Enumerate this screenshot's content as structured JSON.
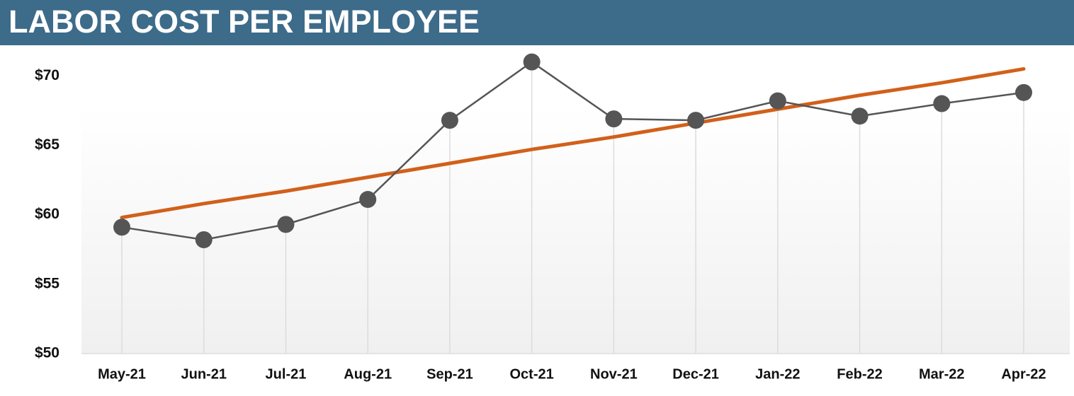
{
  "chart_data": {
    "type": "line",
    "title": "LABOR COST PER EMPLOYEE",
    "categories": [
      "May-21",
      "Jun-21",
      "Jul-21",
      "Aug-21",
      "Sep-21",
      "Oct-21",
      "Nov-21",
      "Dec-21",
      "Jan-22",
      "Feb-22",
      "Mar-22",
      "Apr-22"
    ],
    "series": [
      {
        "color": "#555555",
        "values": [
          59.1,
          58.2,
          59.3,
          61.1,
          66.8,
          71.0,
          66.9,
          66.8,
          68.2,
          67.1,
          68.0,
          68.8
        ]
      },
      {
        "color": "#d2601a",
        "values": [
          59.8,
          60.8,
          61.7,
          62.7,
          63.7,
          64.7,
          65.6,
          66.6,
          67.6,
          68.6,
          69.5,
          70.5
        ]
      }
    ],
    "ylim": [
      50,
      72
    ],
    "yticks": [
      {
        "value": 50,
        "label": "$50"
      },
      {
        "value": 55,
        "label": "$55"
      },
      {
        "value": 60,
        "label": "$60"
      },
      {
        "value": 65,
        "label": "$65"
      },
      {
        "value": 70,
        "label": "$70"
      }
    ]
  }
}
